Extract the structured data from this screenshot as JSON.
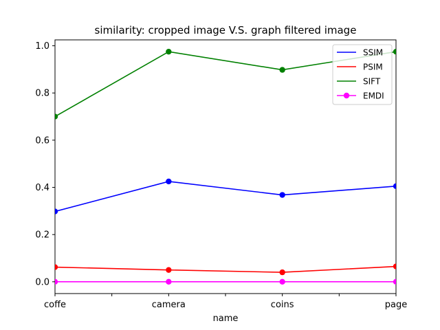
{
  "chart_data": {
    "type": "line",
    "title": "similarity: cropped image V.S. graph filtered image",
    "xlabel": "name",
    "ylabel": "",
    "categories": [
      "coffe",
      "camera",
      "coins",
      "page"
    ],
    "ylim": [
      -0.05,
      1.025
    ],
    "yticks": [
      "0.0",
      "0.2",
      "0.4",
      "0.6",
      "0.8",
      "1.0"
    ],
    "legend_position": "top-right",
    "grid": false,
    "series": [
      {
        "name": "SSIM",
        "color": "#0000ff",
        "marker": "circle",
        "values": [
          0.298,
          0.425,
          0.368,
          0.405
        ]
      },
      {
        "name": "PSIM",
        "color": "#ff0000",
        "marker": "circle",
        "values": [
          0.062,
          0.05,
          0.04,
          0.065
        ]
      },
      {
        "name": "SIFT",
        "color": "#008000",
        "marker": "circle",
        "values": [
          0.7,
          0.975,
          0.898,
          0.975
        ]
      },
      {
        "name": "EMDI",
        "color": "#ff00ff",
        "marker": "circle",
        "values": [
          0.0,
          0.0,
          0.0,
          0.0
        ]
      }
    ]
  }
}
